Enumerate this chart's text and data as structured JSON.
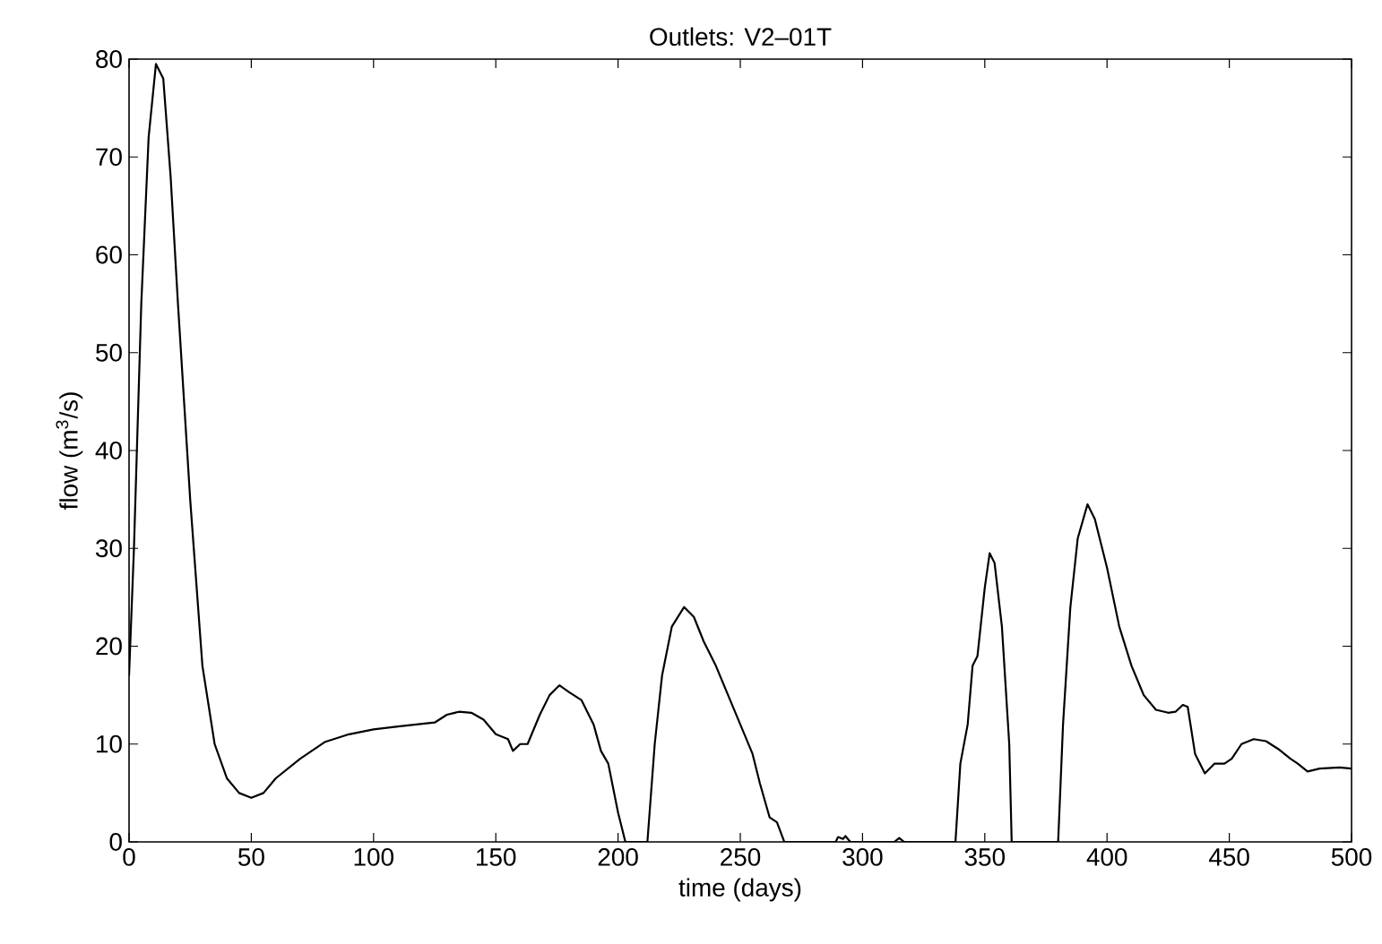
{
  "chart_data": {
    "type": "line",
    "title": "Outlets: V2–01T",
    "xlabel": "time (days)",
    "ylabel": "flow (m$^{3}$/s)",
    "xlim": [
      0,
      500
    ],
    "ylim": [
      0,
      80
    ],
    "xticks": [
      0,
      50,
      100,
      150,
      200,
      250,
      300,
      350,
      400,
      450,
      500
    ],
    "yticks": [
      0,
      10,
      20,
      30,
      40,
      50,
      60,
      70,
      80
    ],
    "grid": false,
    "marker": "none",
    "line_style": "solid",
    "series": [
      {
        "color": "#000000",
        "x": [
          0,
          2,
          5,
          8,
          11,
          14,
          17,
          20,
          25,
          30,
          35,
          40,
          45,
          50,
          55,
          60,
          70,
          80,
          90,
          100,
          110,
          125,
          130,
          135,
          140,
          145,
          150,
          155,
          157,
          160,
          163,
          168,
          172,
          176,
          180,
          185,
          190,
          193,
          196,
          200,
          203,
          212,
          215,
          218,
          222,
          227,
          231,
          235,
          240,
          245,
          250,
          255,
          258,
          262,
          265,
          268,
          289,
          290,
          292,
          293,
          295,
          313,
          315,
          317,
          338,
          340,
          343,
          345,
          347,
          350,
          352,
          354,
          357,
          360,
          361,
          380,
          382,
          385,
          388,
          392,
          395,
          400,
          405,
          410,
          415,
          420,
          425,
          428,
          431,
          433,
          436,
          440,
          444,
          448,
          451,
          455,
          460,
          465,
          470,
          475,
          478,
          482,
          487,
          495,
          500
        ],
        "values": [
          17,
          30,
          55,
          72,
          79.5,
          78,
          68,
          55,
          35,
          18,
          10,
          6.5,
          5,
          4.5,
          5,
          6.5,
          8.5,
          10.2,
          11,
          11.5,
          11.8,
          12.2,
          13,
          13.3,
          13.2,
          12.5,
          11,
          10.5,
          9.3,
          10,
          10,
          13,
          15,
          16,
          15.3,
          14.5,
          12,
          9.3,
          8,
          3,
          0,
          0,
          10,
          17,
          22,
          24,
          23,
          20.5,
          18,
          15,
          12,
          9,
          6,
          2.5,
          2,
          0,
          0,
          0.5,
          0.3,
          0.6,
          0,
          0,
          0.4,
          0,
          0,
          8,
          12,
          18,
          19,
          26,
          29.5,
          28.5,
          22,
          10,
          0,
          0,
          12,
          24,
          31,
          34.5,
          33,
          28,
          22,
          18,
          15,
          13.5,
          13.2,
          13.3,
          14,
          13.8,
          9,
          7,
          8,
          8,
          8.5,
          10,
          10.5,
          10.3,
          9.5,
          8.5,
          8,
          7.2,
          7.5,
          7.6,
          7.5
        ]
      }
    ]
  }
}
